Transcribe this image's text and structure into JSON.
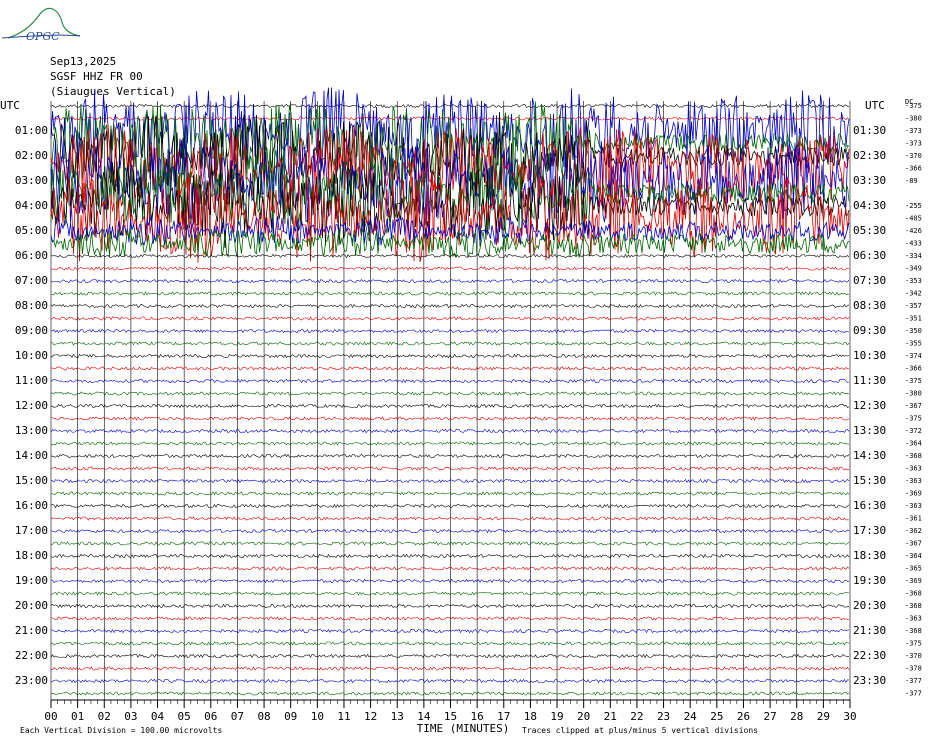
{
  "header": {
    "logo": "OPGC",
    "date": "Sep13,2025",
    "station": "SGSF HHZ FR 00",
    "location": "(Siaugues Vertical)"
  },
  "left_labels": [
    "UTC",
    "01:00",
    "02:00",
    "03:00",
    "04:00",
    "05:00",
    "06:00",
    "07:00",
    "08:00",
    "09:00",
    "10:00",
    "11:00",
    "12:00",
    "13:00",
    "14:00",
    "15:00",
    "16:00",
    "17:00",
    "18:00",
    "19:00",
    "20:00",
    "21:00",
    "22:00",
    "23:00"
  ],
  "right_labels": [
    "UTC",
    "01:30",
    "02:30",
    "03:30",
    "04:30",
    "05:30",
    "06:30",
    "07:30",
    "08:30",
    "09:30",
    "10:30",
    "11:30",
    "12:30",
    "13:30",
    "14:30",
    "15:30",
    "16:30",
    "17:30",
    "18:30",
    "19:30",
    "20:30",
    "21:30",
    "22:30",
    "23:30"
  ],
  "dc_header": "DC",
  "dc_values": [
    "-375",
    "-380",
    "-373",
    "-373",
    "-370",
    "-366",
    "-89",
    "-255",
    "-405",
    "-426",
    "-433",
    "-334",
    "-349",
    "-353",
    "-342",
    "-357",
    "-351",
    "-350",
    "-355",
    "-374",
    "-366",
    "-375",
    "-380",
    "-367",
    "-375",
    "-372",
    "-364",
    "-368",
    "-363",
    "-363",
    "-369",
    "-363",
    "-361",
    "-362",
    "-367",
    "-364",
    "-365",
    "-369",
    "-368",
    "-368",
    "-363",
    "-368",
    "-375",
    "-370",
    "-378",
    "-377",
    "-377"
  ],
  "x_labels": [
    "00",
    "01",
    "02",
    "03",
    "04",
    "05",
    "06",
    "07",
    "08",
    "09",
    "10",
    "11",
    "12",
    "13",
    "14",
    "15",
    "16",
    "17",
    "18",
    "19",
    "20",
    "21",
    "22",
    "23",
    "24",
    "25",
    "26",
    "27",
    "28",
    "29",
    "30"
  ],
  "footer": {
    "scale": "Each Vertical Division =  100.00 microvolts",
    "axis_title": "TIME (MINUTES)",
    "clip_note": "Traces clipped at plus/minus 5 vertical divisions"
  }
}
